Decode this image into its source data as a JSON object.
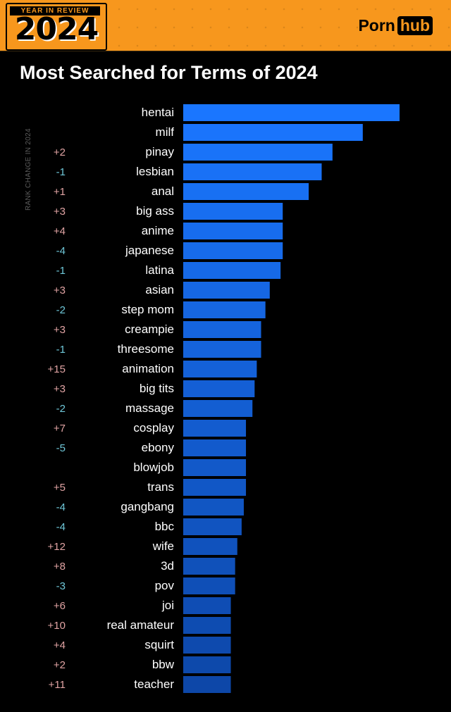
{
  "header": {
    "badge_top": "YEAR IN REVIEW",
    "badge_year": "2024",
    "logo_left": "Porn",
    "logo_right": "hub",
    "bg_color": "#f7971d"
  },
  "chart_data": {
    "type": "bar",
    "orientation": "horizontal",
    "title": "Most Searched for Terms of 2024",
    "rank_change_label": "RANK CHANGE IN 2024",
    "categories": [
      "hentai",
      "milf",
      "pinay",
      "lesbian",
      "anal",
      "big ass",
      "anime",
      "japanese",
      "latina",
      "asian",
      "step mom",
      "creampie",
      "threesome",
      "animation",
      "big tits",
      "massage",
      "cosplay",
      "ebony",
      "blowjob",
      "trans",
      "gangbang",
      "bbc",
      "wife",
      "3d",
      "pov",
      "joi",
      "real amateur",
      "squirt",
      "bbw",
      "teacher"
    ],
    "values": [
      100,
      83,
      69,
      64,
      58,
      46,
      46,
      46,
      45,
      40,
      38,
      36,
      36,
      34,
      33,
      32,
      29,
      29,
      29,
      29,
      28,
      27,
      25,
      24,
      24,
      22,
      22,
      22,
      22,
      22
    ],
    "rank_changes": [
      "",
      "",
      "+2",
      "-1",
      "+1",
      "+3",
      "+4",
      "-4",
      "-1",
      "+3",
      "-2",
      "+3",
      "-1",
      "+15",
      "+3",
      "-2",
      "+7",
      "-5",
      "",
      "+5",
      "-4",
      "-4",
      "+12",
      "+8",
      "-3",
      "+6",
      "+10",
      "+4",
      "+2",
      "+11"
    ],
    "xlim": [
      0,
      100
    ],
    "grid": false,
    "legend": "none",
    "colors": {
      "bar_top": "#1a76ff",
      "bar_bottom": "#0d47a8",
      "positive_change": "#e0a3a3",
      "negative_change": "#6fc7d8"
    }
  }
}
